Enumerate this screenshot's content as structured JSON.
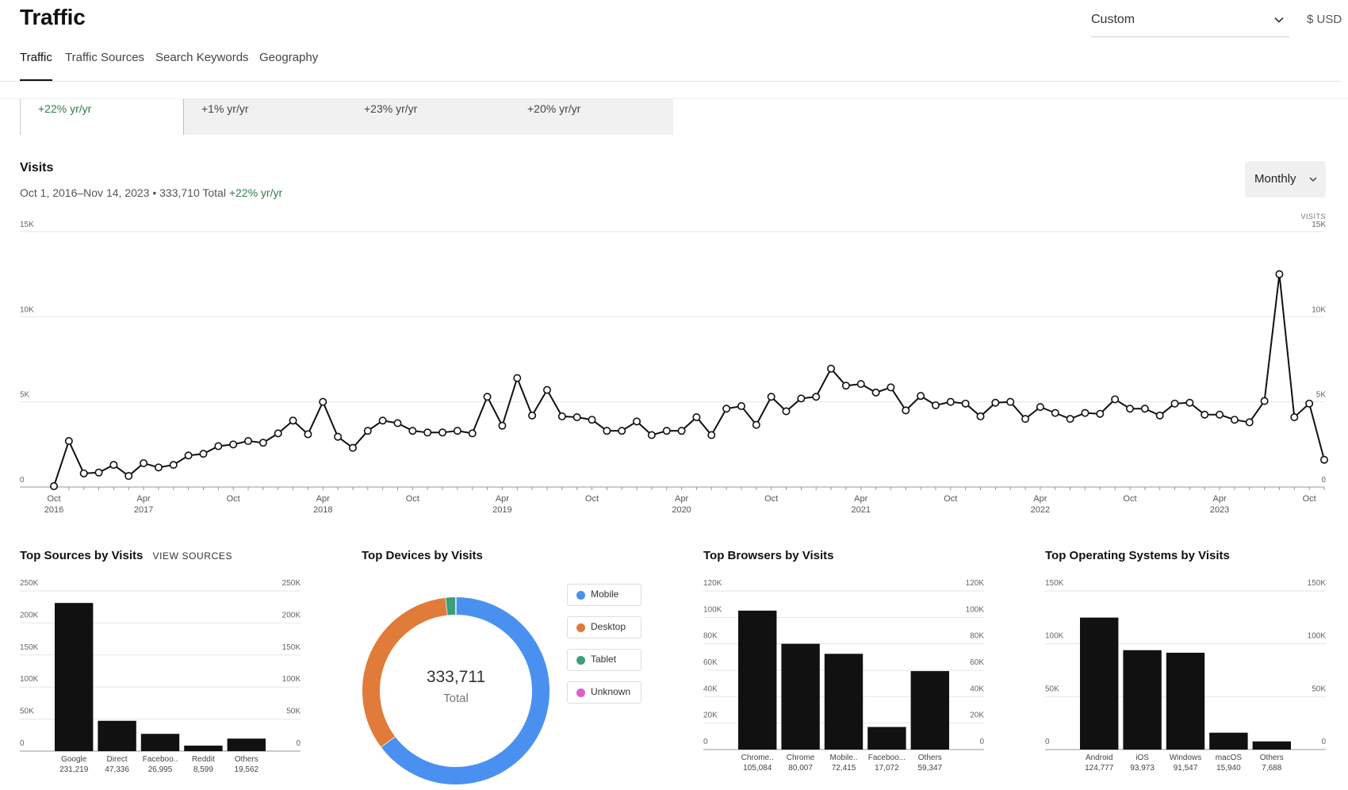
{
  "page": {
    "title": "Traffic",
    "range_select": "Custom",
    "currency": "$ USD",
    "tabs": [
      "Traffic",
      "Traffic Sources",
      "Search Keywords",
      "Geography"
    ],
    "active_tab": "Traffic"
  },
  "summary_cards": [
    {
      "yoy": "+22% yr/yr",
      "selected": true
    },
    {
      "yoy": "+1% yr/yr",
      "selected": false
    },
    {
      "yoy": "+23% yr/yr",
      "selected": false
    },
    {
      "yoy": "+20% yr/yr",
      "selected": false
    }
  ],
  "visits": {
    "title": "Visits",
    "subtitle": "Oct 1, 2016–Nov 14, 2023 • 333,710 Total",
    "subtitle_yoy": "+22% yr/yr",
    "period_button": "Monthly",
    "colors": {
      "line": "#111111",
      "grid": "#e6e6e6",
      "positive": "#2e7d4f"
    }
  },
  "chart_data": [
    {
      "type": "line",
      "name": "visits-over-time",
      "title": "",
      "ylabel_right": "VISITS",
      "ylim": [
        0,
        15000
      ],
      "yticks": [
        "0",
        "5K",
        "10K",
        "15K"
      ],
      "x_tick_labels": [
        [
          "Oct",
          "2016"
        ],
        [
          "Apr",
          "2017"
        ],
        [
          "Oct",
          ""
        ],
        [
          "Apr",
          "2018"
        ],
        [
          "Oct",
          ""
        ],
        [
          "Apr",
          "2019"
        ],
        [
          "Oct",
          ""
        ],
        [
          "Apr",
          "2020"
        ],
        [
          "Oct",
          ""
        ],
        [
          "Apr",
          "2021"
        ],
        [
          "Oct",
          ""
        ],
        [
          "Apr",
          "2022"
        ],
        [
          "Oct",
          ""
        ],
        [
          "Apr",
          "2023"
        ],
        [
          "Oct",
          ""
        ]
      ],
      "x_start": "2016-10",
      "x_end": "2023-11",
      "values": [
        50,
        2700,
        800,
        850,
        1300,
        650,
        1400,
        1150,
        1300,
        1850,
        1950,
        2400,
        2500,
        2700,
        2600,
        3150,
        3900,
        3100,
        5000,
        2950,
        2300,
        3300,
        3900,
        3750,
        3300,
        3200,
        3200,
        3300,
        3150,
        5300,
        3600,
        6400,
        4200,
        5700,
        4150,
        4100,
        3950,
        3300,
        3300,
        3850,
        3050,
        3300,
        3300,
        4100,
        3050,
        4600,
        4750,
        3650,
        5300,
        4450,
        5200,
        5300,
        6950,
        5950,
        6050,
        5550,
        5850,
        4500,
        5350,
        4800,
        5000,
        4900,
        4150,
        4950,
        5000,
        4000,
        4700,
        4350,
        4000,
        4350,
        4300,
        5150,
        4600,
        4600,
        4200,
        4900,
        4950,
        4250,
        4250,
        3950,
        3800,
        5050,
        12500,
        4100,
        4900,
        1600
      ]
    },
    {
      "type": "bar",
      "name": "top-sources",
      "title": "Top Sources by Visits",
      "categories": [
        "Google",
        "Direct",
        "Faceboo..",
        "Reddit",
        "Others"
      ],
      "value_labels": [
        "231,219",
        "47,336",
        "26,995",
        "8,599",
        "19,562"
      ],
      "values": [
        231219,
        47336,
        26995,
        8599,
        19562
      ],
      "ylim": [
        0,
        250000
      ],
      "yticks": [
        "0",
        "50K",
        "100K",
        "150K",
        "200K",
        "250K"
      ]
    },
    {
      "type": "pie",
      "name": "top-devices",
      "title": "Top Devices by Visits",
      "total_label": "333,711",
      "total_caption": "Total",
      "categories": [
        "Mobile",
        "Desktop",
        "Tablet",
        "Unknown"
      ],
      "values": [
        216200,
        111700,
        5750,
        61
      ],
      "colors": [
        "#4a90f0",
        "#e07b3a",
        "#3aa07a",
        "#d95fd0"
      ]
    },
    {
      "type": "bar",
      "name": "top-browsers",
      "title": "Top Browsers by Visits",
      "categories": [
        "Chrome..",
        "Chrome",
        "Mobile..",
        "Faceboo...",
        "Others"
      ],
      "value_labels": [
        "105,084",
        "80,007",
        "72,415",
        "17,072",
        "59,347"
      ],
      "values": [
        105084,
        80007,
        72415,
        17072,
        59347
      ],
      "ylim": [
        0,
        120000
      ],
      "yticks": [
        "0",
        "20K",
        "40K",
        "60K",
        "80K",
        "100K",
        "120K"
      ]
    },
    {
      "type": "bar",
      "name": "top-operating-systems",
      "title": "Top Operating Systems by Visits",
      "categories": [
        "Android",
        "iOS",
        "Windows",
        "macOS",
        "Others"
      ],
      "value_labels": [
        "124,777",
        "93,973",
        "91,547",
        "15,940",
        "7,688"
      ],
      "values": [
        124777,
        93973,
        91547,
        15940,
        7688
      ],
      "ylim": [
        0,
        150000
      ],
      "yticks": [
        "0",
        "50K",
        "100K",
        "150K"
      ]
    }
  ],
  "sources_section": {
    "link": "VIEW SOURCES"
  },
  "icons": {
    "dropdown": "chevron-down-icon"
  }
}
